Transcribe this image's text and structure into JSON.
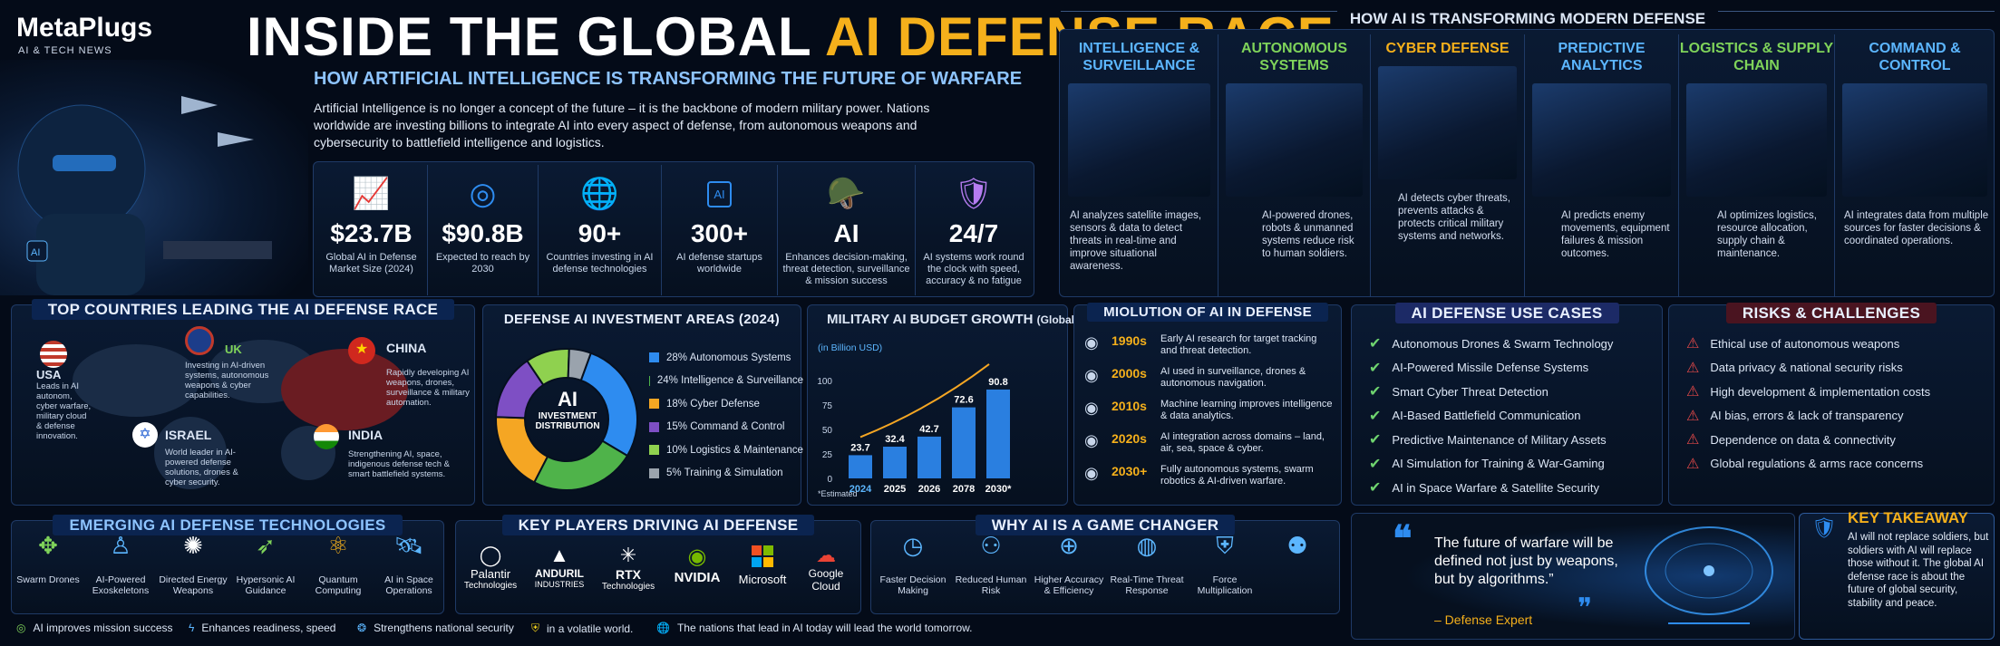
{
  "brand": {
    "name": "MetaPlugs",
    "tagline": "AI & TECH NEWS"
  },
  "title": {
    "part1": "INSIDE THE GLOBAL ",
    "part2": "AI DEFENSE RACE"
  },
  "subtitle": "HOW ARTIFICIAL INTELLIGENCE IS TRANSFORMING THE FUTURE OF WARFARE",
  "intro": "Artificial Intelligence is no longer a concept of the future – it is the backbone of modern military power. Nations worldwide are investing billions to integrate AI into every aspect of defense, from autonomous weapons and cybersecurity to battlefield intelligence and logistics.",
  "stats": [
    {
      "value": "$23.7B",
      "label": "Global AI in Defense Market Size (2024)",
      "icon": "chart-up-icon"
    },
    {
      "value": "$90.8B",
      "label": "Expected to reach by 2030",
      "icon": "target-icon"
    },
    {
      "value": "90+",
      "label": "Countries investing in AI defense technologies",
      "icon": "globe-icon"
    },
    {
      "value": "300+",
      "label": "AI defense startups worldwide",
      "icon": "ai-chip-icon"
    },
    {
      "value": "AI",
      "label": "Enhances decision-making, threat detection, surveillance & mission success",
      "icon": "soldier-icon"
    },
    {
      "value": "24/7",
      "label": "AI systems work round the clock with speed, accuracy & no fatigue",
      "icon": "shield-lock-icon"
    }
  ],
  "transform": {
    "heading": "HOW AI IS TRANSFORMING MODERN DEFENSE",
    "columns": [
      {
        "title": "INTELLIGENCE & SURVEILLANCE",
        "color": "#5cb6ff",
        "desc": "AI analyzes satellite images, sensors & data to detect threats in real-time and improve situational awareness."
      },
      {
        "title": "AUTONOMOUS SYSTEMS",
        "color": "#7fd35a",
        "desc": "AI-powered drones, robots & unmanned systems reduce risk to human soldiers."
      },
      {
        "title": "CYBER DEFENSE",
        "color": "#f5b01b",
        "desc": "AI detects cyber threats, prevents attacks & protects critical military systems and networks."
      },
      {
        "title": "PREDICTIVE ANALYTICS",
        "color": "#5cb6ff",
        "desc": "AI predicts enemy movements, equipment failures & mission outcomes."
      },
      {
        "title": "LOGISTICS & SUPPLY CHAIN",
        "color": "#7fd35a",
        "desc": "AI optimizes logistics, resource allocation, supply chain & maintenance."
      },
      {
        "title": "COMMAND & CONTROL",
        "color": "#5cb6ff",
        "desc": "AI integrates data from multiple sources for faster decisions & coordinated operations."
      }
    ]
  },
  "countries": {
    "heading": "TOP COUNTRIES LEADING THE AI DEFENSE RACE",
    "items": [
      {
        "name": "USA",
        "desc": "Leads in AI autonom, cyber warfare, military cloud & defense innovation."
      },
      {
        "name": "UK",
        "desc": "Investing in AI-driven systems, autonomous weapons & cyber capabilities."
      },
      {
        "name": "CHINA",
        "desc": "Rapidly developing AI weapons, drones, surveillance & military automation."
      },
      {
        "name": "ISRAEL",
        "desc": "World leader in AI-powered defense solutions, drones & cyber security."
      },
      {
        "name": "INDIA",
        "desc": "Strengthening AI, space, indigenous defense tech & smart battlefield systems."
      }
    ]
  },
  "investment": {
    "heading": "DEFENSE AI INVESTMENT AREAS (2024)",
    "center_line1": "AI",
    "center_line2": "INVESTMENT DISTRIBUTION",
    "slices": [
      {
        "label": "28% Autonomous Systems",
        "value": 28,
        "color": "#2e8cf0"
      },
      {
        "label": "24% Intelligence & Surveillance",
        "value": 24,
        "color": "#4fb34a"
      },
      {
        "label": "18% Cyber Defense",
        "value": 18,
        "color": "#f5a623"
      },
      {
        "label": "15% Command & Control",
        "value": 15,
        "color": "#7e4fc4"
      },
      {
        "label": "10% Logistics & Maintenance",
        "value": 10,
        "color": "#8fd14f"
      },
      {
        "label": "5%  Training & Simulation",
        "value": 5,
        "color": "#9aa3ad"
      }
    ]
  },
  "chart_data": {
    "type": "bar",
    "title": "MILITARY AI BUDGET GROWTH",
    "title_suffix": "(Global)",
    "ylabel": "(in Billion USD)",
    "categories": [
      "2024",
      "2025",
      "2026",
      "2078",
      "2030*"
    ],
    "values": [
      23.7,
      32.4,
      42.7,
      72.6,
      90.8
    ],
    "ylim": [
      0,
      100
    ],
    "yticks": [
      "100",
      "75",
      "50",
      "25",
      "0"
    ],
    "note": "*Estimated"
  },
  "evolution": {
    "heading": "MIOLUTION OF AI IN DEFENSE",
    "items": [
      {
        "era": "1990s",
        "desc": "Early AI research for target tracking and threat detection."
      },
      {
        "era": "2000s",
        "desc": "AI used in surveillance, drones & autonomous navigation."
      },
      {
        "era": "2010s",
        "desc": "Machine learning improves intelligence & data analytics."
      },
      {
        "era": "2020s",
        "desc": "AI integration across domains – land, air, sea, space & cyber."
      },
      {
        "era": "2030+",
        "desc": "Fully autonomous systems, swarm robotics & AI-driven warfare."
      }
    ]
  },
  "usecases": {
    "heading": "AI DEFENSE USE CASES",
    "items": [
      "Autonomous Drones & Swarm Technology",
      "AI-Powered Missile Defense Systems",
      "Smart Cyber Threat Detection",
      "AI-Based Battlefield Communication",
      "Predictive Maintenance of Military Assets",
      "AI Simulation for Training & War-Gaming",
      "AI in Space Warfare & Satellite Security"
    ]
  },
  "risks": {
    "heading": "RISKS & CHALLENGES",
    "items": [
      "Ethical use of autonomous weapons",
      "Data privacy & national security risks",
      "High development & implementation costs",
      "AI bias, errors & lack of transparency",
      "Dependence on data & connectivity",
      "Global regulations & arms race concerns"
    ]
  },
  "emerging": {
    "heading": "EMERGING AI DEFENSE TECHNOLOGIES",
    "items": [
      {
        "label": "Swarm Drones",
        "icon": "drone-icon"
      },
      {
        "label": "AI-Powered Exoskeletons",
        "icon": "exoskeleton-icon"
      },
      {
        "label": "Directed Energy Weapons",
        "icon": "energy-icon"
      },
      {
        "label": "Hypersonic AI Guidance",
        "icon": "missile-icon"
      },
      {
        "label": "Quantum Computing",
        "icon": "quantum-icon"
      },
      {
        "label": "AI in Space Operations",
        "icon": "satellite-icon"
      }
    ]
  },
  "players": {
    "heading": "KEY PLAYERS DRIVING AI DEFENSE",
    "items": [
      {
        "name": "Palantir",
        "sub": "Technologies"
      },
      {
        "name": "ANDURIL",
        "sub": "INDUSTRIES"
      },
      {
        "name": "RTX",
        "sub": "Technologies"
      },
      {
        "name": "NVIDIA",
        "sub": ""
      },
      {
        "name": "Microsoft",
        "sub": ""
      },
      {
        "name": "Google",
        "sub": "Cloud"
      }
    ]
  },
  "gamechanger": {
    "heading": "WHY AI IS A GAME CHANGER",
    "items": [
      "Faster Decision Making",
      "Reduced Human Risk",
      "Higher Accuracy & Efficiency",
      "Real-Time Threat Response",
      "Force Multiplication",
      ""
    ]
  },
  "quote": {
    "text": "The future of warfare will be defined not just by weapons, but by algorithms.”",
    "author": "– Defense Expert"
  },
  "takeaway": {
    "heading": "KEY TAKEAWAY",
    "text": "AI will not replace soldiers, but soldiers with AI will replace those without it. The global AI defense race is about the future of global security, stability and peace."
  },
  "footer": [
    "AI improves mission success",
    "Enhances readiness, speed",
    "Strengthens national security",
    "in a volatile world.",
    "The nations that lead in AI today will lead the world tomorrow."
  ],
  "colors": {
    "accent": "#f5b01b",
    "blue": "#2e8cf0",
    "green": "#6fd46f",
    "red": "#e04848"
  }
}
